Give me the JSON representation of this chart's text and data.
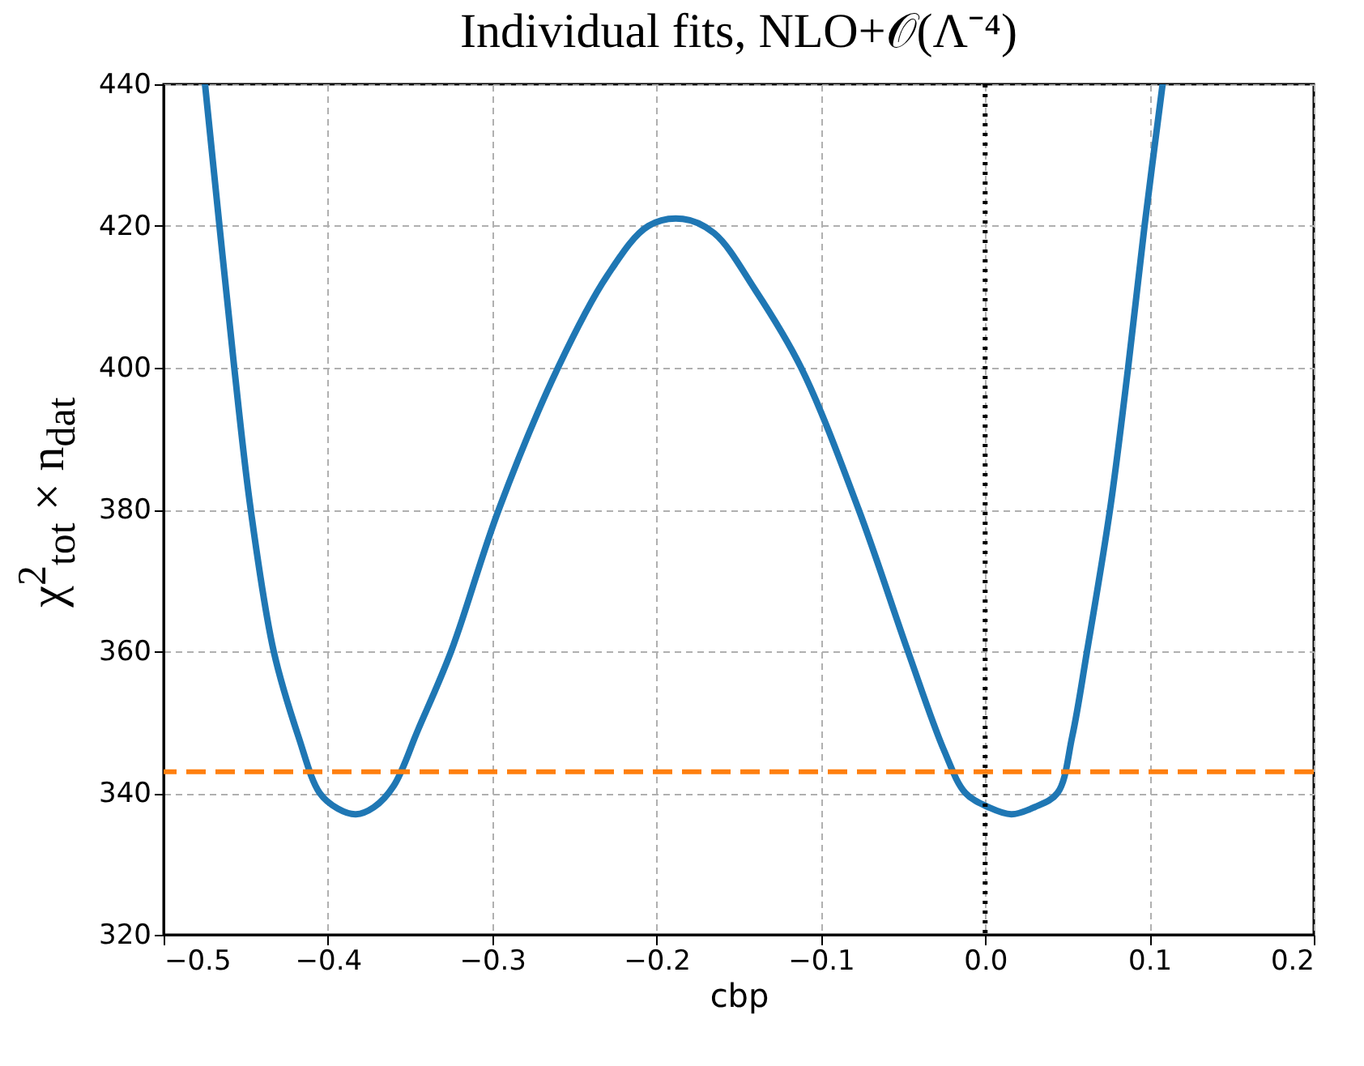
{
  "chart_data": {
    "type": "line",
    "title": "Individual fits, NLO+𝒪(Λ⁻⁴)",
    "xlabel": "cbp",
    "ylabel": "χ$^{2}$$_{tot}$ × n$_{dat}$",
    "x": [
      -0.4748,
      -0.466,
      -0.457,
      -0.447,
      -0.433,
      -0.418,
      -0.405,
      -0.394,
      -0.383,
      -0.372,
      -0.36,
      -0.345,
      -0.325,
      -0.296,
      -0.26,
      -0.23,
      -0.205,
      -0.184,
      -0.165,
      -0.14,
      -0.112,
      -0.077,
      -0.047,
      -0.025,
      -0.012,
      0.002,
      0.016,
      0.03,
      0.044,
      0.053,
      0.062,
      0.076,
      0.087,
      0.097,
      0.108
    ],
    "series": [
      {
        "color": "#1f77b4",
        "values": [
          440,
          420,
          400,
          380,
          360,
          348,
          340,
          337.8,
          337,
          338,
          341,
          349,
          360,
          380,
          400,
          413,
          420,
          421,
          419,
          411,
          400,
          380,
          360,
          346,
          340,
          338,
          337,
          338,
          340,
          348,
          360,
          380,
          400,
          420,
          440
        ]
      }
    ],
    "xlim": [
      -0.5,
      0.2
    ],
    "ylim": [
      320,
      440
    ],
    "xticks": [
      -0.5,
      -0.4,
      -0.3,
      -0.2,
      -0.1,
      {
        "value": 0,
        "label": "0.0"
      },
      0.1,
      0.2
    ],
    "yticks": [
      320,
      340,
      360,
      380,
      400,
      420,
      440
    ],
    "ref_lines": [
      {
        "axis": "y",
        "value": 343,
        "color": "#ff7f0e",
        "line_style": "dashed"
      },
      {
        "axis": "x",
        "value": 0,
        "color": "#000000",
        "line_style": "dotted"
      }
    ],
    "grid": true,
    "marker": "none",
    "line_style": "solid"
  }
}
